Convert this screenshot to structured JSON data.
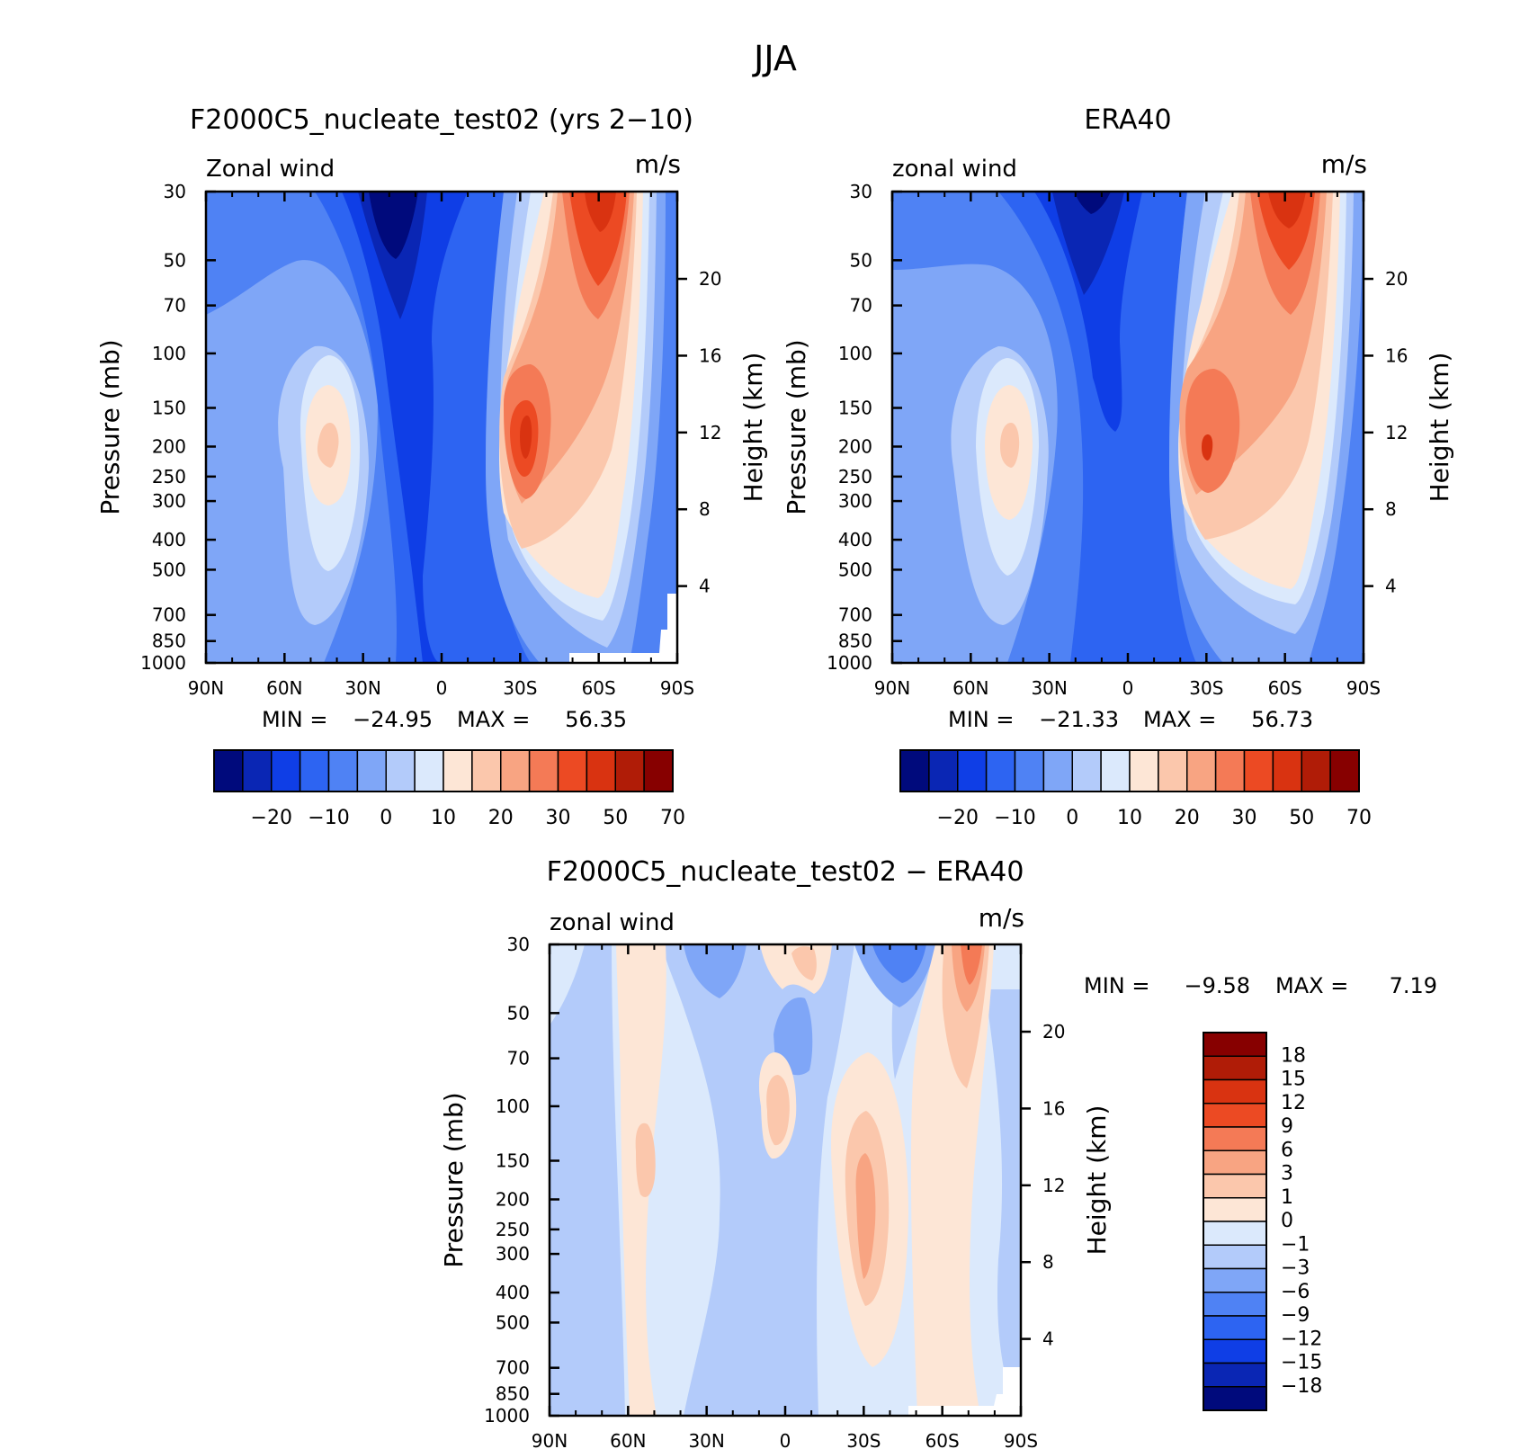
{
  "figure": {
    "title": "JJA"
  },
  "panels": [
    {
      "id": "model",
      "title": "F2000C5_nucleate_test02 (yrs 2−10)",
      "left_label": "Zonal wind",
      "right_label": "m/s",
      "y_axis_label": "Pressure (mb)",
      "y2_axis_label": "Height (km)",
      "min_label": "MIN =",
      "min_value": "−24.95",
      "max_label": "MAX =",
      "max_value": "56.35"
    },
    {
      "id": "era40",
      "title": "ERA40",
      "left_label": "zonal wind",
      "right_label": "m/s",
      "y_axis_label": "Pressure (mb)",
      "y2_axis_label": "Height (km)",
      "min_label": "MIN =",
      "min_value": "−21.33",
      "max_label": "MAX =",
      "max_value": "56.73"
    },
    {
      "id": "diff",
      "title": "F2000C5_nucleate_test02 − ERA40",
      "left_label": "zonal wind",
      "right_label": "m/s",
      "y_axis_label": "Pressure (mb)",
      "y2_axis_label": "Height (km)",
      "min_label": "MIN =",
      "min_value": "−9.58",
      "max_label": "MAX =",
      "max_value": "7.19"
    }
  ],
  "chart_data": [
    {
      "type": "heatmap",
      "title": "F2000C5_nucleate_test02 (yrs 2−10)",
      "x_ticks": [
        "90N",
        "60N",
        "30N",
        "0",
        "30S",
        "60S",
        "90S"
      ],
      "y_ticks": [
        "30",
        "50",
        "70",
        "100",
        "150",
        "200",
        "250",
        "300",
        "400",
        "500",
        "700",
        "850",
        "1000"
      ],
      "y2_ticks": [
        "4",
        "8",
        "12",
        "16",
        "20"
      ],
      "ylim": [
        1000,
        30
      ],
      "y_scale": "log",
      "colorbar": {
        "labels": [
          "−20",
          "−10",
          "0",
          "10",
          "20",
          "30",
          "50",
          "70"
        ],
        "colors": [
          "#000a7c",
          "#0a26b4",
          "#0f3ee6",
          "#2d64f2",
          "#4f82f4",
          "#7fa6f7",
          "#b3cbfa",
          "#dbe9fc",
          "#fde6d6",
          "#fbc7ac",
          "#f8a482",
          "#f47a56",
          "#ec4a23",
          "#d93311",
          "#b01c07",
          "#870000"
        ]
      }
    },
    {
      "type": "heatmap",
      "title": "ERA40",
      "x_ticks": [
        "90N",
        "60N",
        "30N",
        "0",
        "30S",
        "60S",
        "90S"
      ],
      "y_ticks": [
        "30",
        "50",
        "70",
        "100",
        "150",
        "200",
        "250",
        "300",
        "400",
        "500",
        "700",
        "850",
        "1000"
      ],
      "y2_ticks": [
        "4",
        "8",
        "12",
        "16",
        "20"
      ],
      "ylim": [
        1000,
        30
      ],
      "y_scale": "log",
      "colorbar": {
        "labels": [
          "−20",
          "−10",
          "0",
          "10",
          "20",
          "30",
          "50",
          "70"
        ],
        "colors": [
          "#000a7c",
          "#0a26b4",
          "#0f3ee6",
          "#2d64f2",
          "#4f82f4",
          "#7fa6f7",
          "#b3cbfa",
          "#dbe9fc",
          "#fde6d6",
          "#fbc7ac",
          "#f8a482",
          "#f47a56",
          "#ec4a23",
          "#d93311",
          "#b01c07",
          "#870000"
        ]
      }
    },
    {
      "type": "heatmap",
      "title": "F2000C5_nucleate_test02 − ERA40",
      "x_ticks": [
        "90N",
        "60N",
        "30N",
        "0",
        "30S",
        "60S",
        "90S"
      ],
      "y_ticks": [
        "30",
        "50",
        "70",
        "100",
        "150",
        "200",
        "250",
        "300",
        "400",
        "500",
        "700",
        "850",
        "1000"
      ],
      "y2_ticks": [
        "4",
        "8",
        "12",
        "16",
        "20"
      ],
      "ylim": [
        1000,
        30
      ],
      "y_scale": "log",
      "colorbar": {
        "labels": [
          "18",
          "15",
          "12",
          "9",
          "6",
          "3",
          "1",
          "0",
          "−1",
          "−3",
          "−6",
          "−9",
          "−12",
          "−15",
          "−18"
        ],
        "colors": [
          "#870000",
          "#b01c07",
          "#d93311",
          "#ec4a23",
          "#f47a56",
          "#f8a482",
          "#fbc7ac",
          "#fde6d6",
          "#dbe9fc",
          "#b3cbfa",
          "#7fa6f7",
          "#4f82f4",
          "#2d64f2",
          "#0f3ee6",
          "#0a26b4",
          "#000a7c"
        ]
      }
    }
  ]
}
